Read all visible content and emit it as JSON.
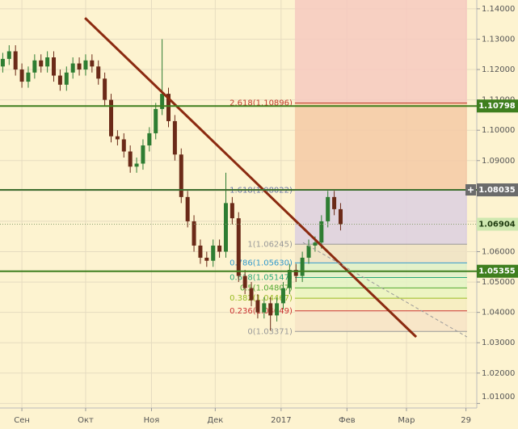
{
  "chart_data": {
    "type": "candlestick",
    "xlim": [
      -10.3,
      214.1
    ],
    "xticks": [
      {
        "value": 0,
        "label": "Сен"
      },
      {
        "value": 30,
        "label": "Окт"
      },
      {
        "value": 61,
        "label": "Ноя"
      },
      {
        "value": 91,
        "label": "Дек"
      },
      {
        "value": 122,
        "label": "2017"
      },
      {
        "value": 153,
        "label": "Фев"
      },
      {
        "value": 181,
        "label": "Мар"
      },
      {
        "value": 209,
        "label": "29"
      }
    ],
    "ylim": [
      1.0085,
      1.1429
    ],
    "yticks": [
      {
        "value": 1.01,
        "label": "1.01000"
      },
      {
        "value": 1.02,
        "label": "1.02000"
      },
      {
        "value": 1.03,
        "label": "1.03000"
      },
      {
        "value": 1.04,
        "label": "1.04000"
      },
      {
        "value": 1.05,
        "label": "1.05000"
      },
      {
        "value": 1.06,
        "label": "1.06000"
      },
      {
        "value": 1.07,
        "label": "1.07000"
      },
      {
        "value": 1.08,
        "label": "1.08000"
      },
      {
        "value": 1.09,
        "label": "1.09000"
      },
      {
        "value": 1.1,
        "label": "1.10000"
      },
      {
        "value": 1.11,
        "label": "1.11000"
      },
      {
        "value": 1.12,
        "label": "1.12000"
      },
      {
        "value": 1.13,
        "label": "1.13000"
      },
      {
        "value": 1.14,
        "label": "1.14000"
      }
    ],
    "grid": true,
    "up_color": "#2e7d32",
    "down_color": "#6b2a18",
    "x": [
      -9,
      -6,
      -3,
      0,
      3,
      6,
      9,
      12,
      15,
      18,
      21,
      24,
      27,
      30,
      33,
      36,
      39,
      42,
      45,
      48,
      51,
      54,
      57,
      60,
      63,
      66,
      69,
      72,
      75,
      78,
      81,
      84,
      87,
      90,
      93,
      96,
      99,
      102,
      105,
      108,
      111,
      114,
      117,
      120,
      123,
      126,
      129,
      132,
      135,
      138,
      141,
      144,
      147,
      150
    ],
    "open": [
      1.121,
      1.1235,
      1.126,
      1.12,
      1.116,
      1.119,
      1.123,
      1.121,
      1.124,
      1.118,
      1.115,
      1.119,
      1.122,
      1.12,
      1.123,
      1.121,
      1.117,
      1.11,
      1.098,
      1.097,
      1.093,
      1.088,
      1.089,
      1.095,
      1.099,
      1.107,
      1.112,
      1.103,
      1.092,
      1.078,
      1.07,
      1.062,
      1.058,
      1.057,
      1.062,
      1.06,
      1.076,
      1.071,
      1.052,
      1.048,
      1.044,
      1.04,
      1.043,
      1.039,
      1.043,
      1.048,
      1.054,
      1.052,
      1.058,
      1.062,
      1.063,
      1.07,
      1.078,
      1.074
    ],
    "close": [
      1.1235,
      1.126,
      1.12,
      1.116,
      1.119,
      1.123,
      1.121,
      1.124,
      1.118,
      1.115,
      1.119,
      1.122,
      1.12,
      1.123,
      1.121,
      1.117,
      1.11,
      1.098,
      1.097,
      1.093,
      1.088,
      1.089,
      1.095,
      1.099,
      1.107,
      1.112,
      1.103,
      1.092,
      1.078,
      1.07,
      1.062,
      1.058,
      1.057,
      1.062,
      1.06,
      1.076,
      1.071,
      1.052,
      1.048,
      1.044,
      1.04,
      1.043,
      1.039,
      1.043,
      1.048,
      1.054,
      1.052,
      1.058,
      1.062,
      1.063,
      1.07,
      1.078,
      1.074,
      1.069
    ],
    "high": [
      1.1255,
      1.128,
      1.128,
      1.122,
      1.121,
      1.125,
      1.125,
      1.126,
      1.126,
      1.12,
      1.121,
      1.124,
      1.124,
      1.125,
      1.125,
      1.123,
      1.119,
      1.112,
      1.1,
      1.099,
      1.095,
      1.091,
      1.097,
      1.101,
      1.109,
      1.13,
      1.114,
      1.105,
      1.094,
      1.08,
      1.072,
      1.064,
      1.06,
      1.064,
      1.064,
      1.086,
      1.078,
      1.073,
      1.054,
      1.05,
      1.046,
      1.045,
      1.045,
      1.045,
      1.05,
      1.056,
      1.056,
      1.06,
      1.064,
      1.065,
      1.072,
      1.08,
      1.08,
      1.076
    ],
    "low": [
      1.119,
      1.1215,
      1.118,
      1.114,
      1.114,
      1.117,
      1.119,
      1.119,
      1.116,
      1.113,
      1.113,
      1.117,
      1.118,
      1.118,
      1.119,
      1.115,
      1.108,
      1.096,
      1.095,
      1.091,
      1.086,
      1.086,
      1.087,
      1.093,
      1.097,
      1.105,
      1.101,
      1.09,
      1.076,
      1.068,
      1.06,
      1.056,
      1.055,
      1.055,
      1.058,
      1.058,
      1.069,
      1.05,
      1.046,
      1.042,
      1.038,
      1.038,
      1.034,
      1.037,
      1.041,
      1.046,
      1.05,
      1.05,
      1.056,
      1.06,
      1.061,
      1.068,
      1.072,
      1.067
    ],
    "fib_x": [
      128.5,
      209.5
    ],
    "fib_levels": [
      {
        "value": 1.10896,
        "label": "2.618(1.10896)",
        "color": "#c0392b",
        "fill": "#f6c9bf"
      },
      {
        "value": 1.08022,
        "label": "1.618(1.08022)",
        "color": "#6a78a8",
        "fill": "#f5c9a6"
      },
      {
        "value": 1.06245,
        "label": "1(1.06245)",
        "color": "#999999",
        "fill": "#dccfe0"
      },
      {
        "value": 1.0563,
        "label": "0.786(1.05630)",
        "color": "#3399cc",
        "fill": "#efe2c4"
      },
      {
        "value": 1.05147,
        "label": "0.618(1.05147)",
        "color": "#2aa876",
        "fill": "#def0c9"
      },
      {
        "value": 1.04807,
        "label": "0.5(1.04807)",
        "color": "#55aa33",
        "fill": "#e3f3c6"
      },
      {
        "value": 1.04467,
        "label": "0.382(1.04467)",
        "color": "#99bb22",
        "fill": "#eaf3c0"
      },
      {
        "value": 1.04049,
        "label": "0.236(1.04049)",
        "color": "#cc3333",
        "fill": "#f6ecbf"
      },
      {
        "value": 1.03371,
        "label": "0(1.03371)",
        "color": "#999999",
        "fill": "#f7e3c7"
      }
    ],
    "trendlines": [
      {
        "x": [
          29.7,
          185.6
        ],
        "y": [
          1.137,
          1.0319
        ],
        "color": "#8b2a10",
        "dash": false
      },
      {
        "x": [
          132.3,
          209.5
        ],
        "y": [
          1.063,
          1.0319
        ],
        "color": "#9a9a9a",
        "dash": true
      }
    ],
    "levels": [
      {
        "value": 1.10798,
        "color": "#3f7f1f",
        "box": "#3f7f1f",
        "text": "#ffffff"
      },
      {
        "value": 1.08035,
        "color": "#3f6f2f",
        "box": "#6b6b6b",
        "text": "#ffffff"
      },
      {
        "value": 1.05355,
        "color": "#3f7f1f",
        "box": "#3f7f1f",
        "text": "#ffffff"
      }
    ],
    "current_price": {
      "value": 1.06904,
      "color": "#8aa070",
      "box": "#cfe8b0",
      "text": "#1e3a10"
    }
  }
}
